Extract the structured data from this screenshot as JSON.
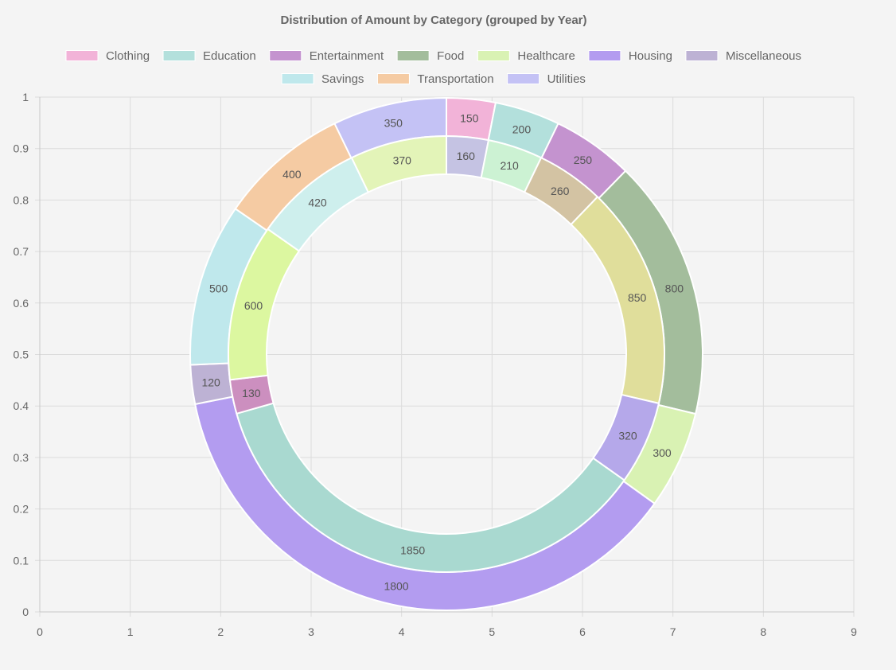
{
  "chart_data": {
    "type": "doughnut",
    "title": "Distribution of Amount by Category (grouped by Year)",
    "legend_position": "top",
    "categories": [
      "Clothing",
      "Education",
      "Entertainment",
      "Food",
      "Healthcare",
      "Housing",
      "Miscellaneous",
      "Savings",
      "Transportation",
      "Utilities"
    ],
    "colors": [
      "#f2b3d8",
      "#b3e0dc",
      "#c493cf",
      "#a3bd9c",
      "#d9f2b3",
      "#b39cf0",
      "#bdb2d4",
      "#bfe8ec",
      "#f5cba3",
      "#c4c2f5"
    ],
    "x_axis": {
      "min": 0,
      "max": 9,
      "ticks": [
        "0",
        "1",
        "2",
        "3",
        "4",
        "5",
        "6",
        "7",
        "8",
        "9"
      ]
    },
    "y_axis": {
      "min": 0,
      "max": 1,
      "ticks": [
        "0",
        "0.1",
        "0.2",
        "0.3",
        "0.4",
        "0.5",
        "0.6",
        "0.7",
        "0.8",
        "0.9",
        "1"
      ]
    },
    "rings": [
      {
        "name": "outer",
        "segments": [
          {
            "category": "Clothing",
            "value": 150,
            "color": "#f2b3d8"
          },
          {
            "category": "Education",
            "value": 200,
            "color": "#b3e0dc"
          },
          {
            "category": "Entertainment",
            "value": 250,
            "color": "#c493cf"
          },
          {
            "category": "Food",
            "value": 800,
            "color": "#a3bd9c"
          },
          {
            "category": "Healthcare",
            "value": 300,
            "color": "#d9f2b3"
          },
          {
            "category": "Housing",
            "value": 1800,
            "color": "#b39cf0"
          },
          {
            "category": "Miscellaneous",
            "value": 120,
            "color": "#bdb2d4"
          },
          {
            "category": "Savings",
            "value": 500,
            "color": "#bfe8ec"
          },
          {
            "category": "Transportation",
            "value": 400,
            "color": "#f5cba3"
          },
          {
            "category": "Utilities",
            "value": 350,
            "color": "#c4c2f5"
          }
        ]
      },
      {
        "name": "inner",
        "segments": [
          {
            "category": "",
            "value": 160,
            "color": "#c5c3e3"
          },
          {
            "category": "",
            "value": 210,
            "color": "#ccf2d3"
          },
          {
            "category": "",
            "value": 260,
            "color": "#d3c3a3"
          },
          {
            "category": "",
            "value": 850,
            "color": "#e0de9b"
          },
          {
            "category": "",
            "value": 320,
            "color": "#b5a8ea"
          },
          {
            "category": "",
            "value": 1850,
            "color": "#a9d9d0"
          },
          {
            "category": "",
            "value": 130,
            "color": "#cc8fbf"
          },
          {
            "category": "",
            "value": 600,
            "color": "#dcf7a0"
          },
          {
            "category": "",
            "value": 420,
            "color": "#ceefed"
          },
          {
            "category": "",
            "value": 370,
            "color": "#e3f4b8"
          }
        ]
      }
    ]
  }
}
